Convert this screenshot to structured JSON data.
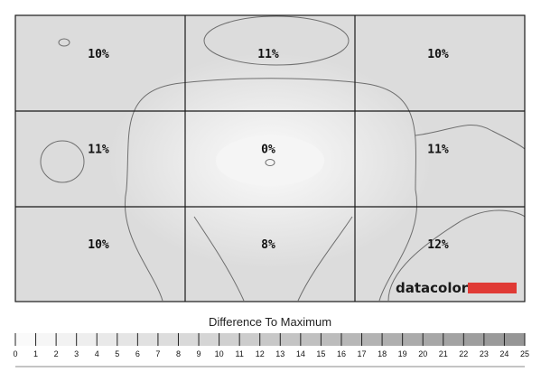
{
  "chart_data": {
    "type": "heatmap",
    "title": "",
    "rows": 3,
    "cols": 3,
    "values": [
      [
        10,
        11,
        10
      ],
      [
        11,
        0,
        11
      ],
      [
        10,
        8,
        12
      ]
    ],
    "labels": [
      [
        "10%",
        "11%",
        "10%"
      ],
      [
        "11%",
        "0%",
        "11%"
      ],
      [
        "10%",
        "8%",
        "12%"
      ]
    ],
    "unit": "%",
    "colors": {
      "low": "#fbfbfb",
      "high": "#9a9a9a",
      "grid": "#1a1a1a",
      "contour": "#6f6f6f"
    },
    "legend": {
      "title": "Difference To Maximum",
      "range": [
        0,
        25
      ],
      "ticks": [
        "0",
        "1",
        "2",
        "3",
        "4",
        "5",
        "6",
        "7",
        "8",
        "9",
        "10",
        "11",
        "12",
        "13",
        "14",
        "15",
        "16",
        "17",
        "18",
        "19",
        "20",
        "21",
        "22",
        "23",
        "24",
        "25"
      ]
    }
  },
  "brand": {
    "name": "datacolor",
    "bar_color": "#e03a35"
  }
}
